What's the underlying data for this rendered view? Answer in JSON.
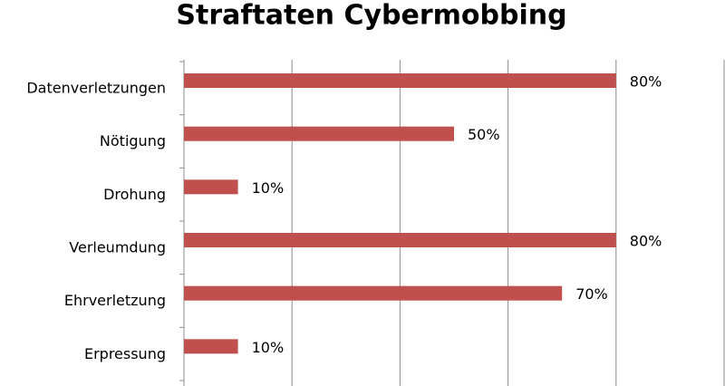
{
  "chart_data": {
    "type": "bar",
    "orientation": "horizontal",
    "title": "Straftaten Cybermobbing",
    "categories": [
      "Datenverletzungen",
      "Nötigung",
      "Drohung",
      "Verleumdung",
      "Ehrverletzung",
      "Erpressung"
    ],
    "values": [
      80,
      50,
      10,
      80,
      70,
      10
    ],
    "value_labels": [
      "80%",
      "50%",
      "10%",
      "80%",
      "70%",
      "10%"
    ],
    "color": "#c0504d",
    "xlim": [
      0,
      100
    ],
    "xticks": [
      0,
      20,
      40,
      60,
      80,
      100
    ],
    "grid": true
  }
}
